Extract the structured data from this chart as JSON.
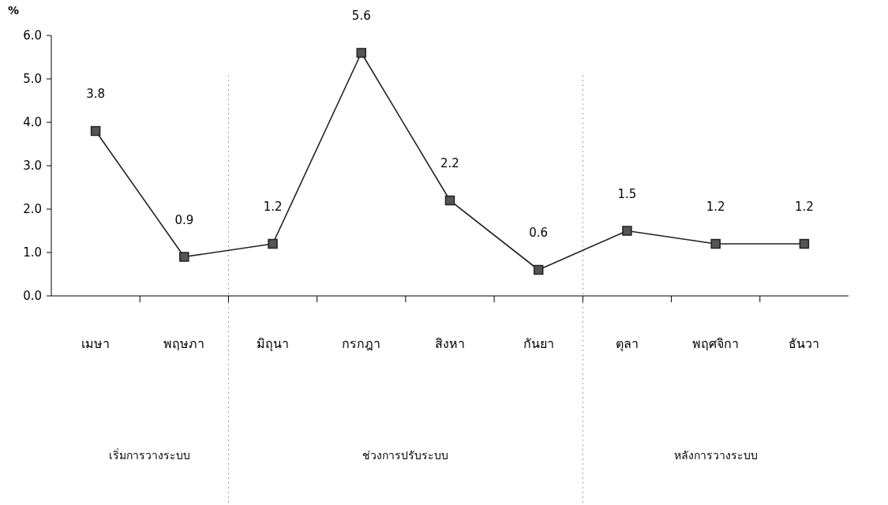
{
  "chart_data": {
    "type": "line",
    "ylabel": "%",
    "categories": [
      "เมษา",
      "พฤษภา",
      "มิถุนา",
      "กรกฎา",
      "สิงหา",
      "กันยา",
      "ตุลา",
      "พฤศจิกา",
      "ธันวา"
    ],
    "series": [
      {
        "color": "#222222",
        "values": [
          3.8,
          0.9,
          1.2,
          5.6,
          2.2,
          0.6,
          1.5,
          1.2,
          1.2
        ]
      }
    ],
    "ylim": [
      0,
      6
    ],
    "yticks": [
      {
        "value": 0,
        "label": "0.0"
      },
      {
        "value": 1,
        "label": "1.0"
      },
      {
        "value": 2,
        "label": "2.0"
      },
      {
        "value": 3,
        "label": "3.0"
      },
      {
        "value": 4,
        "label": "4.0"
      },
      {
        "value": 5,
        "label": "5.0"
      },
      {
        "value": 6,
        "label": "6.0"
      }
    ],
    "marker": "square",
    "line_style": "solid",
    "data_labels": true,
    "grid": false,
    "annotations": [
      "เริ่มการวางระบบ",
      "ช่วงการปรับระบบ",
      "หลังการวางระบบ"
    ]
  }
}
